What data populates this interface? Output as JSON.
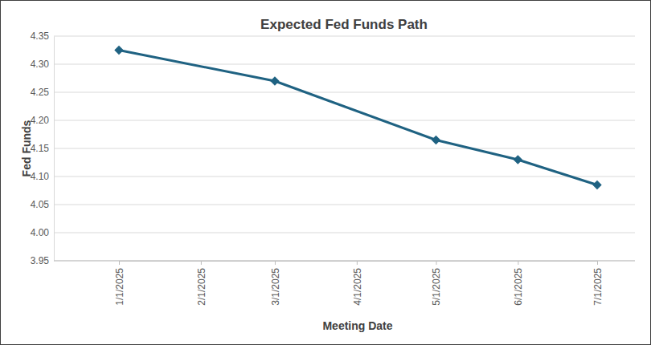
{
  "chart_data": {
    "type": "line",
    "title": "Expected Fed Funds Path",
    "x_label": "Meeting Date",
    "y_label": "Fed Funds",
    "x": [
      "1/1/2025",
      "3/1/2025",
      "5/1/2025",
      "6/1/2025",
      "7/1/2025"
    ],
    "values": [
      4.325,
      4.27,
      4.165,
      4.13,
      4.085
    ],
    "color": "#1f6282",
    "marker": "diamond",
    "line_style": "solid",
    "xlim": [
      "1/1/2025",
      "7/1/2025"
    ],
    "xticks": [
      "1/1/2025",
      "2/1/2025",
      "3/1/2025",
      "4/1/2025",
      "5/1/2025",
      "6/1/2025",
      "7/1/2025"
    ],
    "ylim": [
      3.95,
      4.35
    ],
    "yticks": [
      3.95,
      {
        "value": 4.0,
        "label": "4.00"
      },
      4.05,
      {
        "value": 4.1,
        "label": "4.10"
      },
      4.15,
      {
        "value": 4.2,
        "label": "4.20"
      },
      4.25,
      {
        "value": 4.3,
        "label": "4.30"
      },
      4.35
    ],
    "grid": true
  }
}
